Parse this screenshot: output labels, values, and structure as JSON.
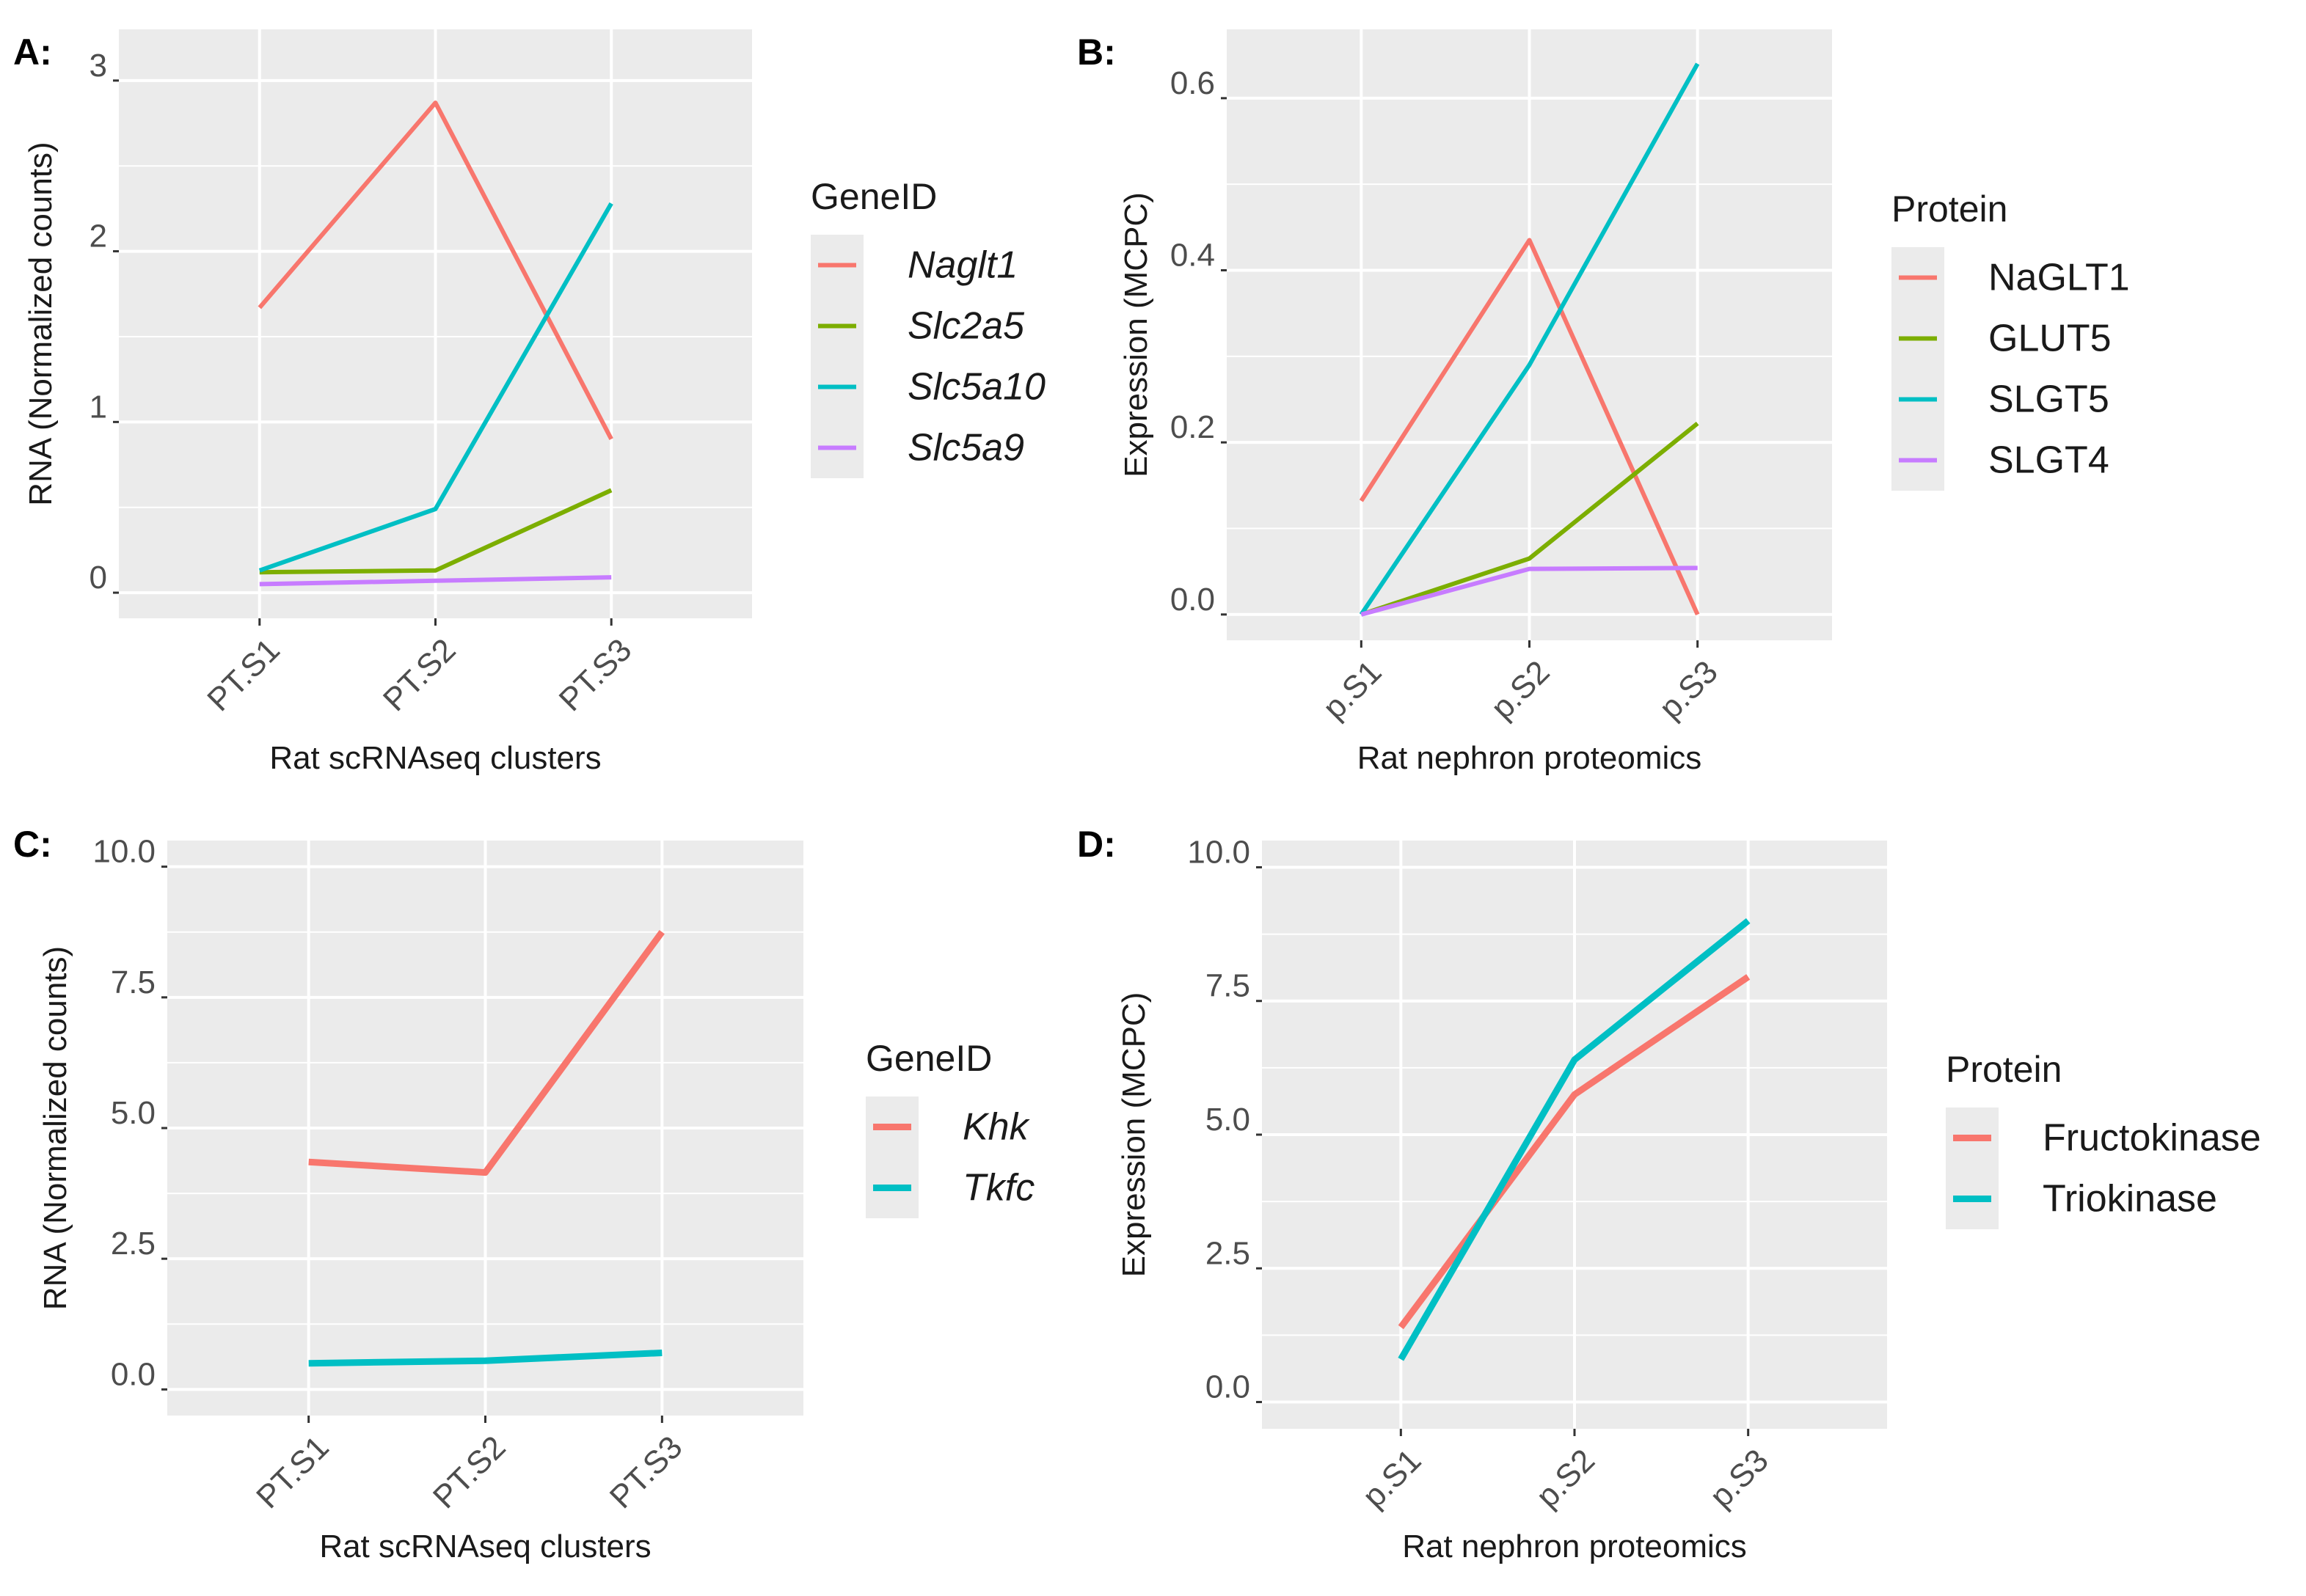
{
  "chart_data": [
    {
      "panel": "A:",
      "type": "line",
      "categories": [
        "PT.S1",
        "PT.S2",
        "PT.S3"
      ],
      "xlabel": "Rat scRNAseq clusters",
      "ylabel": "RNA (Normalized counts)",
      "ylim": [
        -0.15,
        3.3
      ],
      "yticks": [
        0,
        1,
        2,
        3
      ],
      "ytick_labels": [
        "0",
        "1",
        "2",
        "3"
      ],
      "legend_title": "GeneID",
      "legend_italic": true,
      "series": [
        {
          "name": "Naglt1",
          "color": "#F8766D",
          "values": [
            1.67,
            2.87,
            0.9
          ]
        },
        {
          "name": "Slc2a5",
          "color": "#7CAE00",
          "values": [
            0.12,
            0.13,
            0.6
          ]
        },
        {
          "name": "Slc5a10",
          "color": "#00BFC4",
          "values": [
            0.13,
            0.49,
            2.28
          ]
        },
        {
          "name": "Slc5a9",
          "color": "#C77CFF",
          "values": [
            0.05,
            0.07,
            0.09
          ]
        }
      ]
    },
    {
      "panel": "B:",
      "type": "line",
      "categories": [
        "p.S1",
        "p.S2",
        "p.S3"
      ],
      "xlabel": "Rat nephron proteomics",
      "ylabel": "Expression (MCPC)",
      "ylim": [
        -0.03,
        0.68
      ],
      "yticks": [
        0,
        0.2,
        0.4,
        0.6
      ],
      "ytick_labels": [
        "0.0",
        "0.2",
        "0.4",
        "0.6"
      ],
      "legend_title": "Protein",
      "legend_italic": false,
      "series": [
        {
          "name": "NaGLT1",
          "color": "#F8766D",
          "values": [
            0.132,
            0.435,
            0.0
          ]
        },
        {
          "name": "GLUT5",
          "color": "#7CAE00",
          "values": [
            0.0,
            0.065,
            0.222
          ]
        },
        {
          "name": "SLGT5",
          "color": "#00BFC4",
          "values": [
            0.0,
            0.29,
            0.64
          ]
        },
        {
          "name": "SLGT4",
          "color": "#C77CFF",
          "values": [
            0.0,
            0.053,
            0.054
          ]
        }
      ]
    },
    {
      "panel": "C:",
      "type": "line",
      "categories": [
        "PT.S1",
        "PT.S2",
        "PT.S3"
      ],
      "xlabel": "Rat scRNAseq clusters",
      "ylabel": "RNA (Normalized counts)",
      "ylim": [
        -0.5,
        10.5
      ],
      "yticks": [
        0,
        2.5,
        5,
        7.5,
        10
      ],
      "ytick_labels": [
        "0.0",
        "2.5",
        "5.0",
        "7.5",
        "10.0"
      ],
      "legend_title": "GeneID",
      "legend_italic": true,
      "series": [
        {
          "name": "Khk",
          "color": "#F8766D",
          "values": [
            4.35,
            4.15,
            8.75
          ]
        },
        {
          "name": "Tkfc",
          "color": "#00BFC4",
          "values": [
            0.5,
            0.55,
            0.7
          ]
        }
      ]
    },
    {
      "panel": "D:",
      "type": "line",
      "categories": [
        "p.S1",
        "p.S2",
        "p.S3"
      ],
      "xlabel": "Rat nephron proteomics",
      "ylabel": "Expression (MCPC)",
      "ylim": [
        -0.5,
        10.5
      ],
      "yticks": [
        0,
        2.5,
        5,
        7.5,
        10
      ],
      "ytick_labels": [
        "0.0",
        "2.5",
        "5.0",
        "7.5",
        "10.0"
      ],
      "legend_title": "Protein",
      "legend_italic": false,
      "series": [
        {
          "name": "Fructokinase",
          "color": "#F8766D",
          "values": [
            1.4,
            5.75,
            7.95
          ]
        },
        {
          "name": "Triokinase",
          "color": "#00BFC4",
          "values": [
            0.8,
            6.4,
            9.0
          ]
        }
      ]
    }
  ]
}
